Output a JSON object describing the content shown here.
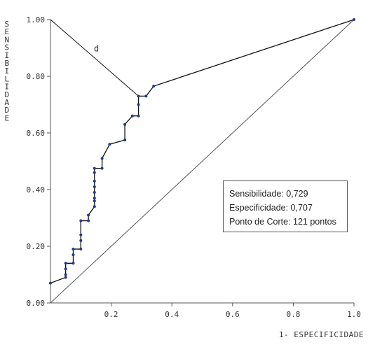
{
  "chart_data": {
    "type": "line",
    "title": "",
    "xlabel": "1- ESPECIFICIDADE",
    "ylabel": "SENSIBILIDADE",
    "xlim": [
      0,
      1.0
    ],
    "ylim": [
      0,
      1.0
    ],
    "x_ticks": [
      {
        "value": 0.2,
        "label": "0.2"
      },
      {
        "value": 0.4,
        "label": "0.4"
      },
      {
        "value": 0.6,
        "label": "0.6"
      },
      {
        "value": 0.8,
        "label": "0.8"
      },
      {
        "value": 1.0,
        "label": "1.0"
      }
    ],
    "y_ticks": [
      {
        "value": 0.0,
        "label": "0.00"
      },
      {
        "value": 0.2,
        "label": "0.20"
      },
      {
        "value": 0.4,
        "label": "0.40"
      },
      {
        "value": 0.6,
        "label": "0.60"
      },
      {
        "value": 0.8,
        "label": "0.80"
      },
      {
        "value": 1.0,
        "label": "1.00"
      }
    ],
    "series": [
      {
        "values": [
          [
            0.0,
            0.07
          ],
          [
            0.05,
            0.09
          ],
          [
            0.05,
            0.1
          ],
          [
            0.05,
            0.12
          ],
          [
            0.05,
            0.14
          ],
          [
            0.075,
            0.14
          ],
          [
            0.075,
            0.17
          ],
          [
            0.075,
            0.19
          ],
          [
            0.1,
            0.19
          ],
          [
            0.1,
            0.22
          ],
          [
            0.1,
            0.24
          ],
          [
            0.1,
            0.29
          ],
          [
            0.125,
            0.29
          ],
          [
            0.125,
            0.31
          ],
          [
            0.145,
            0.34
          ],
          [
            0.145,
            0.36
          ],
          [
            0.145,
            0.37
          ],
          [
            0.145,
            0.39
          ],
          [
            0.145,
            0.41
          ],
          [
            0.145,
            0.43
          ],
          [
            0.145,
            0.46
          ],
          [
            0.145,
            0.475
          ],
          [
            0.17,
            0.475
          ],
          [
            0.17,
            0.51
          ],
          [
            0.195,
            0.56
          ],
          [
            0.245,
            0.575
          ],
          [
            0.245,
            0.63
          ],
          [
            0.27,
            0.66
          ],
          [
            0.29,
            0.66
          ],
          [
            0.29,
            0.7
          ],
          [
            0.29,
            0.73
          ],
          [
            0.315,
            0.73
          ],
          [
            0.34,
            0.765
          ],
          [
            1.0,
            1.0
          ]
        ]
      }
    ],
    "reference_line": {
      "from": [
        0,
        0
      ],
      "to": [
        1,
        1
      ]
    },
    "distance_line": {
      "from": [
        0,
        1
      ],
      "to": [
        0.29,
        0.73
      ],
      "label": "d"
    },
    "line_color": "#111111",
    "marker_color": "#1f3a8a",
    "diagonal_color": "#555555",
    "grid": false,
    "legend_placement": "lower-right",
    "annotations": [
      "Sensibilidade: 0,729",
      "Especificidade: 0,707",
      "Ponto de Corte: 121 pontos"
    ]
  }
}
